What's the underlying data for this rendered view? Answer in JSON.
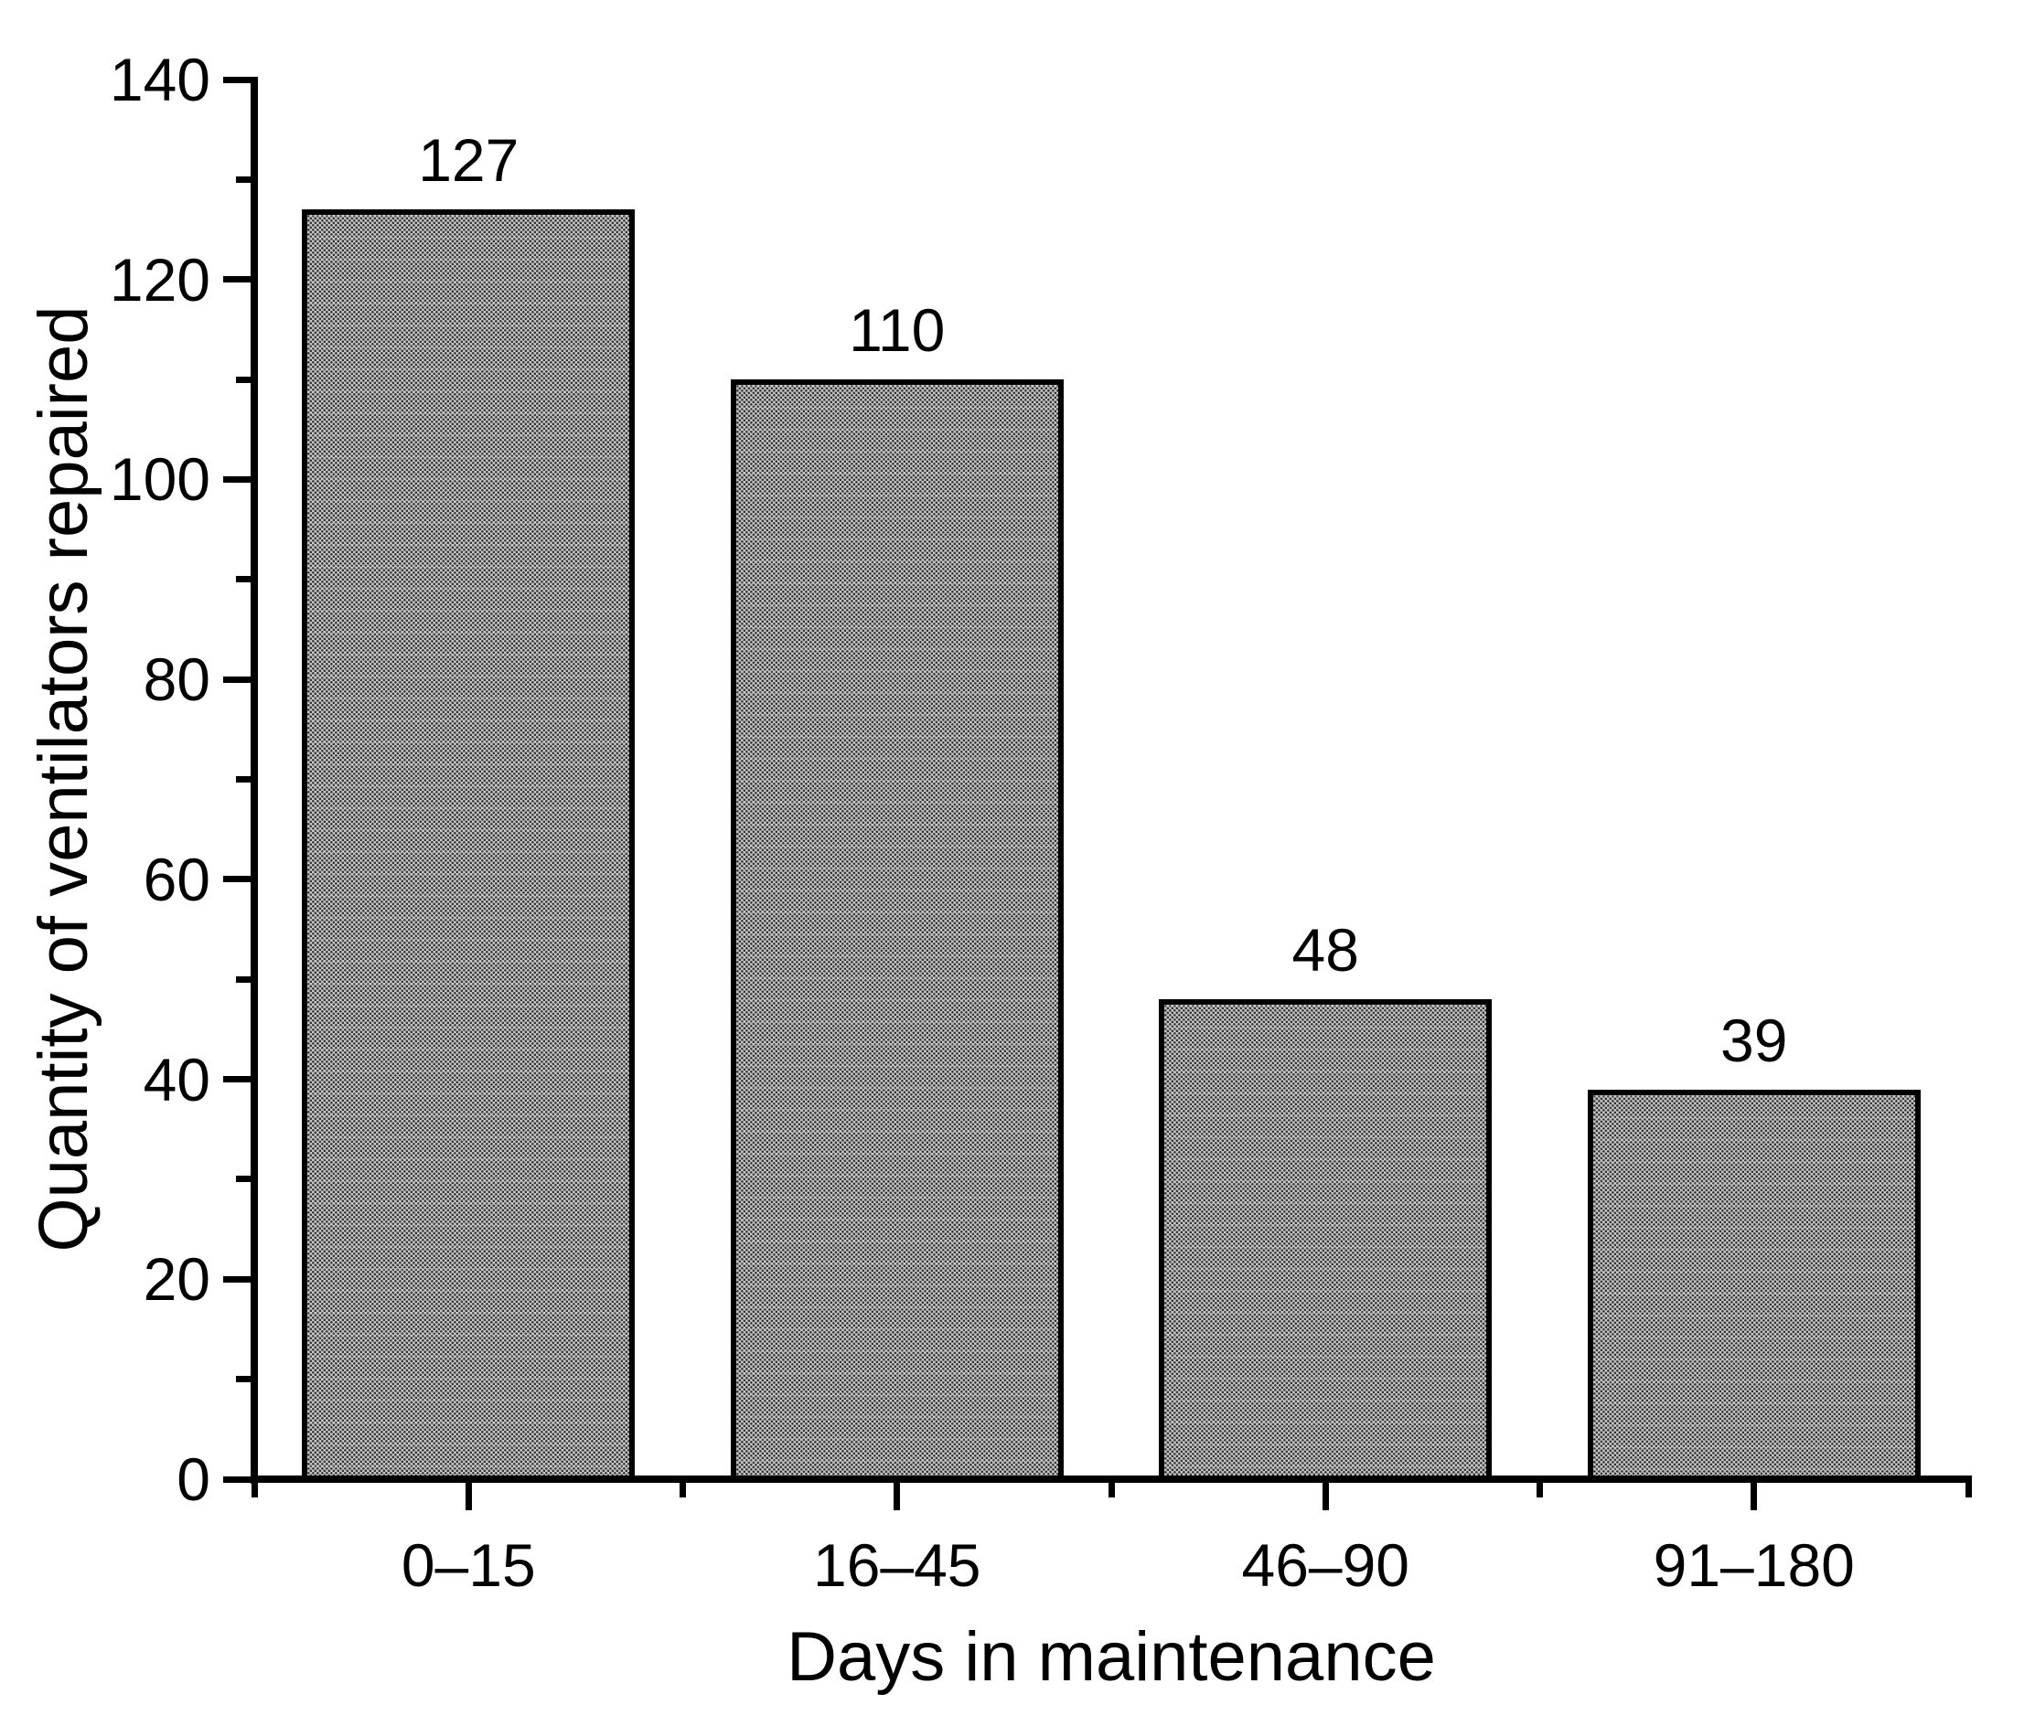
{
  "figure": {
    "background_color": "#ffffff",
    "text_color": "#000000",
    "axis_color": "#000000"
  },
  "chart_data": {
    "type": "bar",
    "title": "",
    "categories": [
      "0–15",
      "16–45",
      "46–90",
      "91–180"
    ],
    "values": [
      127,
      110,
      48,
      39
    ],
    "bar_value_labels": [
      "127",
      "110",
      "48",
      "39"
    ],
    "xlabel": "Days in maintenance",
    "ylabel": "Quantity of ventilators repaired",
    "ylim": [
      0,
      140
    ],
    "y_major_ticks": [
      0,
      20,
      40,
      60,
      80,
      100,
      120,
      140
    ],
    "y_minor_ticks": [
      10,
      30,
      50,
      70,
      90,
      110,
      130
    ],
    "x_major_ticks": "one per category center",
    "x_minor_ticks": "category boundaries",
    "grid": "off",
    "legend": "none",
    "bar_fill": "halftone-gray-dither",
    "bar_border_color": "#000000",
    "bar_average_color": "#979797",
    "tick_direction": "out"
  }
}
